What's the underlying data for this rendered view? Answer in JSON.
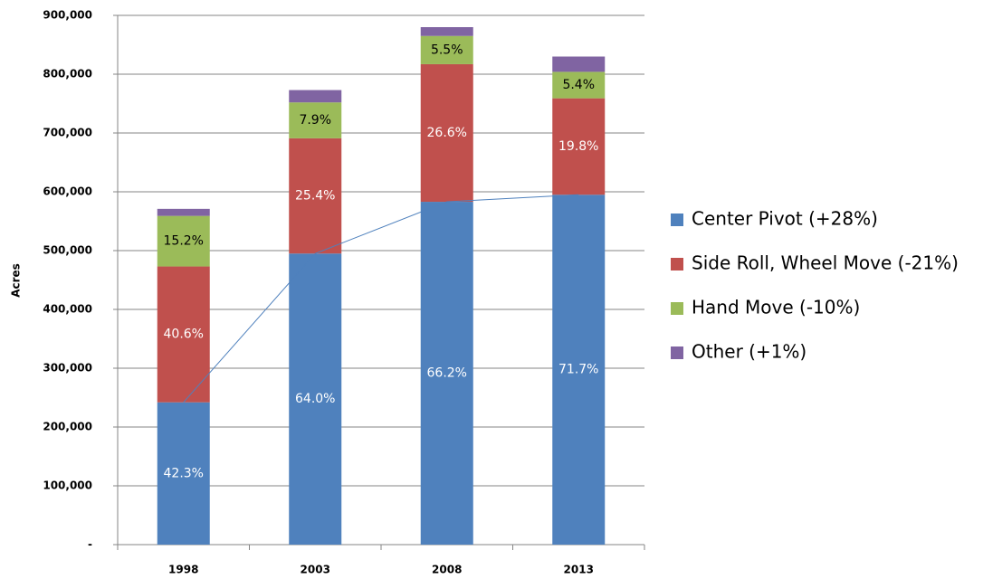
{
  "chart_data": {
    "type": "stacked_bar",
    "y_label": "Acres",
    "categories": [
      "1998",
      "2003",
      "2008",
      "2013"
    ],
    "ylim": [
      0,
      900000
    ],
    "yticks": [
      {
        "value": 0,
        "label": "-"
      },
      {
        "value": 100000,
        "label": "100,000"
      },
      {
        "value": 200000,
        "label": "200,000"
      },
      {
        "value": 300000,
        "label": "300,000"
      },
      {
        "value": 400000,
        "label": "400,000"
      },
      {
        "value": 500000,
        "label": "500,000"
      },
      {
        "value": 600000,
        "label": "600,000"
      },
      {
        "value": 700000,
        "label": "700,000"
      },
      {
        "value": 800000,
        "label": "800,000"
      },
      {
        "value": 900000,
        "label": "900,000"
      }
    ],
    "grid": true,
    "legend": "right",
    "trend_line": {
      "series": 0,
      "color": "#4f81bd"
    },
    "series": [
      {
        "name": "Center Pivot (+28%)",
        "color": "#4f81bd",
        "label_color": "#ffffff",
        "values": [
          242000,
          495000,
          583000,
          595000
        ],
        "share_labels": [
          "42.3%",
          "64.0%",
          "66.2%",
          "71.7%"
        ]
      },
      {
        "name": "Side Roll, Wheel Move (-21%)",
        "color": "#c0504d",
        "label_color": "#ffffff",
        "values": [
          231000,
          196000,
          234000,
          164000
        ],
        "share_labels": [
          "40.6%",
          "25.4%",
          "26.6%",
          "19.8%"
        ]
      },
      {
        "name": "Hand Move (-10%)",
        "color": "#9bbb59",
        "label_color": "#000000",
        "values": [
          86000,
          61000,
          48000,
          45000
        ],
        "share_labels": [
          "15.2%",
          "7.9%",
          "5.5%",
          "5.4%"
        ]
      },
      {
        "name": "Other (+1%)",
        "color": "#8064a2",
        "values": [
          12000,
          21000,
          15000,
          26000
        ]
      }
    ]
  }
}
